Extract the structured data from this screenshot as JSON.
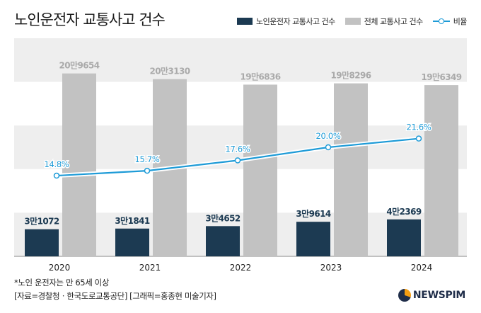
{
  "title": "노인운전자 교통사고 건수",
  "legend": {
    "elderly": "노인운전자 교통사고 건수",
    "total": "전체 교통사고 건수",
    "ratio": "비율"
  },
  "colors": {
    "elderly_bar": "#1c3a52",
    "total_bar": "#c2c2c2",
    "ratio_line": "#1e9bd7",
    "band": "#eeeeee"
  },
  "chart_data": {
    "type": "bar",
    "categories": [
      "2020",
      "2021",
      "2022",
      "2023",
      "2024"
    ],
    "series": [
      {
        "name": "노인운전자 교통사고 건수",
        "values": [
          31072,
          31841,
          34652,
          39614,
          42369
        ],
        "labels": [
          "3만1072",
          "3만1841",
          "3만4652",
          "3만9614",
          "4만2369"
        ]
      },
      {
        "name": "전체 교통사고 건수",
        "values": [
          209654,
          203130,
          196836,
          198296,
          196349
        ],
        "labels": [
          "20만9654",
          "20만3130",
          "19만6836",
          "19만8296",
          "19만6349"
        ]
      },
      {
        "name": "비율",
        "type": "line",
        "values": [
          14.8,
          15.7,
          17.6,
          20.0,
          21.6
        ],
        "labels": [
          "14.8%",
          "15.7%",
          "17.6%",
          "20.0%",
          "21.6%"
        ]
      }
    ],
    "ylim": [
      0,
      250000
    ],
    "ratio_ylim": [
      0,
      40
    ],
    "legend_position": "top-right"
  },
  "footnote": {
    "line1": "*노인 운전자는 만 65세 이상",
    "line2": "[자료=경찰청ㆍ한국도로교통공단] [그래픽=홍종현 미술기자]"
  },
  "logo": "NEWSPIM"
}
